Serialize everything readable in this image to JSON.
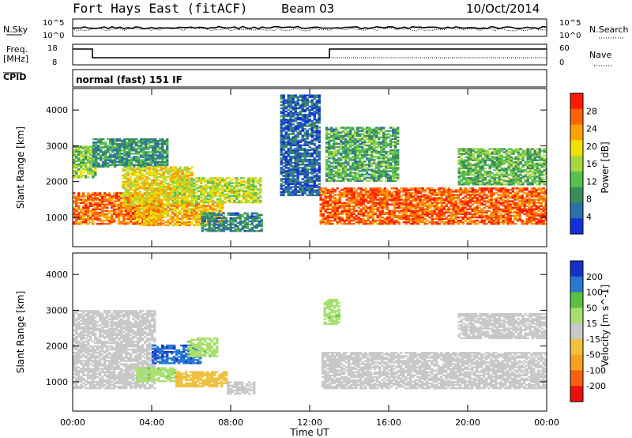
{
  "header": {
    "station": "Fort Hays East (fitACF)",
    "beam": "Beam 03",
    "date": "10/Oct/2014"
  },
  "top_panels": {
    "nsky_label": "N.Sky",
    "nsky_ticks": [
      "10^5",
      "10^0"
    ],
    "nsearch_label": "N.Search",
    "nsearch_ticks": [
      "10^5",
      "10^0"
    ],
    "freq_label_1": "Freq.",
    "freq_label_2": "[MHz]",
    "freq_ticks": [
      "18",
      "8"
    ],
    "nave_label": "Nave",
    "nave_ticks": [
      "60",
      "0"
    ],
    "cpid_label": "CPID",
    "cpid_text": "normal (fast) 151 IF"
  },
  "x_axis": {
    "label": "Time UT",
    "ticks": [
      "00:00",
      "04:00",
      "08:00",
      "12:00",
      "16:00",
      "20:00",
      "00:00"
    ]
  },
  "chart_data": [
    {
      "type": "heatmap",
      "panel": "power",
      "ylabel": "Slant Range [km]",
      "yticks": [
        1000,
        2000,
        3000,
        4000
      ],
      "ylim": [
        180,
        4600
      ],
      "xlim_hours": [
        0,
        24
      ],
      "colorbar_label": "Power [dB]",
      "colorbar_ticks": [
        "28",
        "24",
        "20",
        "16",
        "12",
        "8",
        "4"
      ],
      "colorbar_colors": [
        "#ff1c00",
        "#ff6400",
        "#ffa000",
        "#f0e000",
        "#a8d840",
        "#58c050",
        "#3c8c5a",
        "#2c70a8",
        "#1230d8"
      ],
      "regions": [
        {
          "t0": 0.0,
          "t1": 4.5,
          "r0": 800,
          "r1": 1700,
          "v": 26
        },
        {
          "t0": 0.0,
          "t1": 1.2,
          "r0": 2100,
          "r1": 3000,
          "v": 14
        },
        {
          "t0": 1.0,
          "t1": 4.8,
          "r0": 2400,
          "r1": 3200,
          "v": 9
        },
        {
          "t0": 2.5,
          "t1": 6.0,
          "r0": 1300,
          "r1": 2400,
          "v": 20
        },
        {
          "t0": 3.2,
          "t1": 7.6,
          "r0": 760,
          "r1": 1350,
          "v": 22
        },
        {
          "t0": 5.0,
          "t1": 9.5,
          "r0": 1400,
          "r1": 2100,
          "v": 17
        },
        {
          "t0": 6.5,
          "t1": 9.6,
          "r0": 600,
          "r1": 1100,
          "v": 8
        },
        {
          "t0": 10.5,
          "t1": 12.5,
          "r0": 1600,
          "r1": 4400,
          "v": 5
        },
        {
          "t0": 12.5,
          "t1": 24.0,
          "r0": 800,
          "r1": 1800,
          "v": 27
        },
        {
          "t0": 12.8,
          "t1": 16.5,
          "r0": 2000,
          "r1": 3500,
          "v": 11
        },
        {
          "t0": 19.5,
          "t1": 24.0,
          "r0": 1900,
          "r1": 2900,
          "v": 12
        }
      ]
    },
    {
      "type": "heatmap",
      "panel": "velocity",
      "ylabel": "Slant Range [km]",
      "yticks": [
        1000,
        2000,
        3000,
        4000
      ],
      "ylim": [
        180,
        4600
      ],
      "xlim_hours": [
        0,
        24
      ],
      "colorbar_label": "Velocity [m s^-1]",
      "colorbar_ticks": [
        "200",
        "100",
        "50",
        "15",
        "-15",
        "-50",
        "-100",
        "-200"
      ],
      "colorbar_colors": [
        "#1432c8",
        "#2878d0",
        "#5cc040",
        "#a8e070",
        "#c8c8c8",
        "#f0c040",
        "#f8a020",
        "#f86010",
        "#e81010"
      ],
      "regions": [
        {
          "t0": 0.0,
          "t1": 4.2,
          "r0": 800,
          "r1": 3000,
          "v": 0
        },
        {
          "t0": 3.2,
          "t1": 5.2,
          "r0": 1000,
          "r1": 1400,
          "v": 60
        },
        {
          "t0": 4.0,
          "t1": 6.5,
          "r0": 1500,
          "r1": 2000,
          "v": 180
        },
        {
          "t0": 5.8,
          "t1": 7.3,
          "r0": 1700,
          "r1": 2200,
          "v": 60
        },
        {
          "t0": 5.2,
          "t1": 7.8,
          "r0": 850,
          "r1": 1300,
          "v": -60
        },
        {
          "t0": 7.8,
          "t1": 9.2,
          "r0": 650,
          "r1": 1000,
          "v": 0
        },
        {
          "t0": 12.6,
          "t1": 24.0,
          "r0": 800,
          "r1": 1800,
          "v": 0
        },
        {
          "t0": 12.7,
          "t1": 13.5,
          "r0": 2600,
          "r1": 3300,
          "v": 60
        },
        {
          "t0": 19.5,
          "t1": 24.0,
          "r0": 2200,
          "r1": 2900,
          "v": 0
        }
      ]
    }
  ]
}
